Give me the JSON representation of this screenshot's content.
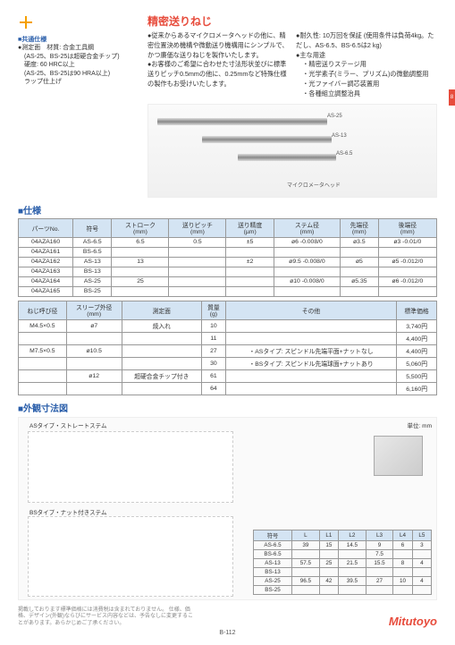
{
  "sideTab": "8",
  "commonSpecs": {
    "heading": "■共通仕様",
    "line1": "●測定面　材質: 合金工具鋼",
    "line2": "　(AS-25、BS-25は超硬合金チップ)",
    "line3": "　硬度: 60 HRC以上",
    "line4": "　(AS-25、BS-25は90 HRA以上)",
    "line5": "　ラップ仕上げ"
  },
  "title": "精密送りねじ",
  "intro": {
    "l1": "●従来からあるマイクロメータヘッドの他に、精密位置決め機構や微動送り機構用にシンプルで、かつ廉価な送りねじを製作いたします。",
    "l2": "●お客様のご希望に合わせた寸法形状並びに標準送りピッチ0.5mmの他に、0.25mmなど特殊仕様の製作もお受けいたします。",
    "r1": "●耐久性: 10万回を保証 (使用条件は負荷4kg。ただし、AS-6.5、BS-6.5は2 kg)",
    "r2": "●主な用途",
    "r3": "　・精密送りステージ用",
    "r4": "　・光学素子(ミラー、プリズム)の微動調整用",
    "r5": "　・光ファイバー調芯装置用",
    "r6": "　・各種組立調整治具"
  },
  "imgLabels": {
    "a": "AS-25",
    "b": "AS-13",
    "c": "AS-6.5",
    "d": "マイクロメータヘッド"
  },
  "specHd": "仕様",
  "specTable": {
    "headers": [
      "パーツNo.",
      "符号",
      "ストローク\n(mm)",
      "送りピッチ\n(mm)",
      "送り精度\n(µm)",
      "ステム径\n(mm)",
      "先端径\n(mm)",
      "後端径\n(mm)"
    ],
    "rows": [
      [
        "04AZA160",
        "AS-6.5",
        "6.5",
        "0.5",
        "±5",
        "ø6 -0.008/0",
        "ø3.5",
        "ø3 -0.01/0"
      ],
      [
        "04AZA161",
        "BS-6.5",
        "",
        "",
        "",
        "",
        "",
        ""
      ],
      [
        "04AZA162",
        "AS-13",
        "13",
        "",
        "±2",
        "ø9.5 -0.008/0",
        "ø5",
        "ø5 -0.012/0"
      ],
      [
        "04AZA163",
        "BS-13",
        "",
        "",
        "",
        "",
        "",
        ""
      ],
      [
        "04AZA164",
        "AS-25",
        "25",
        "",
        "",
        "ø10 -0.008/0",
        "ø5.35",
        "ø6 -0.012/0"
      ],
      [
        "04AZA165",
        "BS-25",
        "",
        "",
        "",
        "",
        "",
        ""
      ]
    ]
  },
  "specTable2": {
    "headers": [
      "ねじ呼び径",
      "スリーブ外径\n(mm)",
      "測定面",
      "質量\n(g)",
      "その他",
      "標準価格"
    ],
    "rows": [
      [
        "M4.5×0.5",
        "ø7",
        "焼入れ",
        "10",
        "",
        "3,740円"
      ],
      [
        "",
        "",
        "",
        "11",
        "",
        "4,400円"
      ],
      [
        "M7.5×0.5",
        "ø10.5",
        "",
        "27",
        "・ASタイプ: スピンドル先端平面+ナットなし",
        "4,400円"
      ],
      [
        "",
        "",
        "",
        "30",
        "・BSタイプ: スピンドル先端球面+ナットあり",
        "5,060円"
      ],
      [
        "",
        "ø12",
        "超硬合金チップ付き",
        "61",
        "",
        "5,500円"
      ],
      [
        "",
        "",
        "",
        "64",
        "",
        "6,160円"
      ]
    ]
  },
  "dimHd": "外観寸法図",
  "dimUnit": "単位: mm",
  "dimLabels": {
    "t1": "ASタイプ・ストレートステム",
    "t2": "BSタイプ・ナット付きステム",
    "sp": "スピンドル\n(材質: SKS焼入研磨)",
    "sl": "スリーブ\n(材質: 快削黄銅、黒染め)",
    "st": "ステム部",
    "nj": "ねじ呼び径",
    "nt": "ナット付きステム",
    "sh": "身硬球面"
  },
  "dimTable": {
    "headers": [
      "符号",
      "L",
      "L1",
      "L2",
      "L3",
      "L4",
      "L5"
    ],
    "rows": [
      [
        "AS-6.5",
        "39",
        "15",
        "14.5",
        "9",
        "6",
        "3"
      ],
      [
        "BS-6.5",
        "",
        "",
        "",
        "7.5",
        "",
        ""
      ],
      [
        "AS-13",
        "57.5",
        "25",
        "21.5",
        "15.5",
        "8",
        "4"
      ],
      [
        "BS-13",
        "",
        "",
        "",
        "",
        "",
        ""
      ],
      [
        "AS-25",
        "96.5",
        "42",
        "39.5",
        "27",
        "10",
        "4"
      ],
      [
        "BS-25",
        "",
        "",
        "",
        "",
        "",
        ""
      ]
    ]
  },
  "footer": {
    "disclaimer": "掲載しております標準価格には消費税は含まれておりません。\n仕様、価格、デザイン(外観)ならびにサービス内容などは、予告なしに変更することがあります。あらかじめご了承ください。",
    "logo": "Mitutoyo",
    "pgnum": "B-112"
  }
}
